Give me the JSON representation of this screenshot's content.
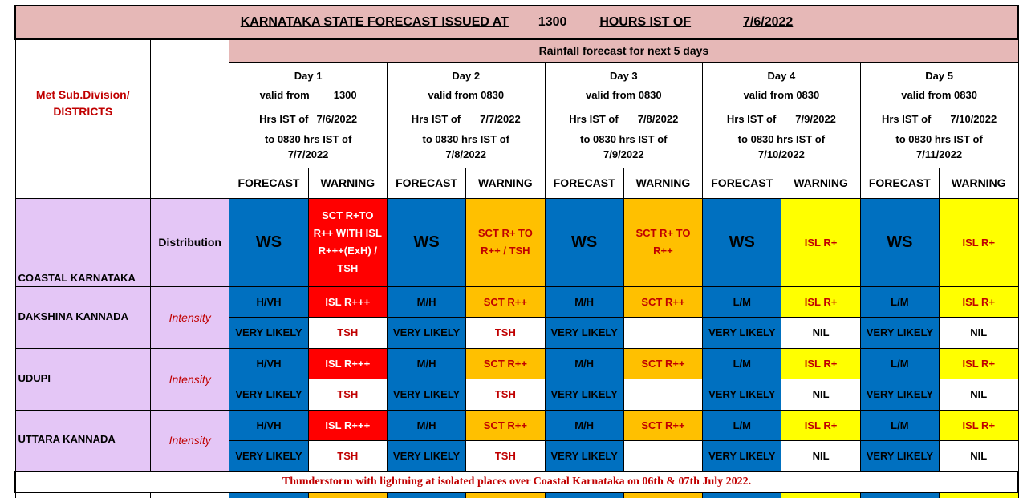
{
  "header": {
    "title_prefix": "KARNATAKA STATE FORECAST ISSUED AT",
    "time": "1300",
    "hours_label": "HOURS IST OF",
    "date": "7/6/2022"
  },
  "rainfall_heading": "Rainfall forecast for next 5 days",
  "met_subdivision_label_1": "Met Sub.Division/",
  "met_subdivision_label_2": "DISTRICTS",
  "days": [
    {
      "title": "Day 1",
      "valid_from": "valid from",
      "valid_time": "1300",
      "hrs_ist_of": "Hrs IST of",
      "date": "7/6/2022",
      "to_line": "to 0830 hrs IST of",
      "to_date": "7/7/2022"
    },
    {
      "title": "Day 2",
      "valid_from": "valid from 0830",
      "valid_time": "",
      "hrs_ist_of": "Hrs IST of",
      "date": "7/7/2022",
      "to_line": "to 0830 hrs IST of",
      "to_date": "7/8/2022"
    },
    {
      "title": "Day 3",
      "valid_from": "valid from 0830",
      "valid_time": "",
      "hrs_ist_of": "Hrs IST of",
      "date": "7/8/2022",
      "to_line": "to 0830 hrs IST of",
      "to_date": "7/9/2022"
    },
    {
      "title": "Day 4",
      "valid_from": "valid from 0830",
      "valid_time": "",
      "hrs_ist_of": "Hrs IST of",
      "date": "7/9/2022",
      "to_line": "to 0830 hrs IST of",
      "to_date": "7/10/2022"
    },
    {
      "title": "Day 5",
      "valid_from": "valid from 0830",
      "valid_time": "",
      "hrs_ist_of": "Hrs IST of",
      "date": "7/10/2022",
      "to_line": "to 0830 hrs IST of",
      "to_date": "7/11/2022"
    }
  ],
  "col_forecast": "FORECAST",
  "col_warning": "WARNING",
  "coastal": {
    "name": "COASTAL KARNATAKA",
    "label": "Distribution",
    "forecast": [
      "WS",
      "WS",
      "WS",
      "WS",
      "WS"
    ],
    "warning": [
      "SCT R+TO R++ WITH ISL R+++(ExH) / TSH",
      "SCT R+ TO R++  / TSH",
      "SCT R+ TO R++",
      "ISL R+",
      "ISL R+"
    ]
  },
  "districts": [
    {
      "name": "DAKSHINA KANNADA",
      "label": "Intensity",
      "intensity": [
        "H/VH",
        "M/H",
        "M/H",
        "L/M",
        "L/M"
      ],
      "int_warning": [
        "ISL R+++",
        "SCT R++",
        "SCT R++",
        "ISL R+",
        "ISL R+"
      ],
      "likely": [
        "VERY LIKELY",
        "VERY LIKELY",
        "VERY LIKELY",
        "VERY LIKELY",
        "VERY LIKELY"
      ],
      "tsh": [
        "TSH",
        "TSH",
        "",
        "NIL",
        "NIL"
      ]
    },
    {
      "name": "UDUPI",
      "label": "Intensity",
      "intensity": [
        "H/VH",
        "M/H",
        "M/H",
        "L/M",
        "L/M"
      ],
      "int_warning": [
        "ISL R+++",
        "SCT R++",
        "SCT R++",
        "ISL R+",
        "ISL R+"
      ],
      "likely": [
        "VERY LIKELY",
        "VERY LIKELY",
        "VERY LIKELY",
        "VERY LIKELY",
        "VERY LIKELY"
      ],
      "tsh": [
        "TSH",
        "TSH",
        "",
        "NIL",
        "NIL"
      ]
    },
    {
      "name": "UTTARA KANNADA",
      "label": "Intensity",
      "intensity": [
        "H/VH",
        "M/H",
        "M/H",
        "L/M",
        "L/M"
      ],
      "int_warning": [
        "ISL R+++",
        "SCT R++",
        "SCT R++",
        "ISL R+",
        "ISL R+"
      ],
      "likely": [
        "VERY LIKELY",
        "VERY LIKELY",
        "VERY LIKELY",
        "VERY LIKELY",
        "VERY LIKELY"
      ],
      "tsh": [
        "TSH",
        "TSH",
        "",
        "NIL",
        "NIL"
      ]
    }
  ],
  "note": "Thunderstorm with lightning  at isolated places over Coastal Karnataka  on 06th & 07th July 2022.",
  "colors": {
    "title_bg": "#e6b8b7",
    "lilac": "#e4c6f6",
    "blue": "#0070c0",
    "red": "#ff0000",
    "orange": "#ffc000",
    "yellow": "#ffff00",
    "dark_red_text": "#c00000"
  }
}
